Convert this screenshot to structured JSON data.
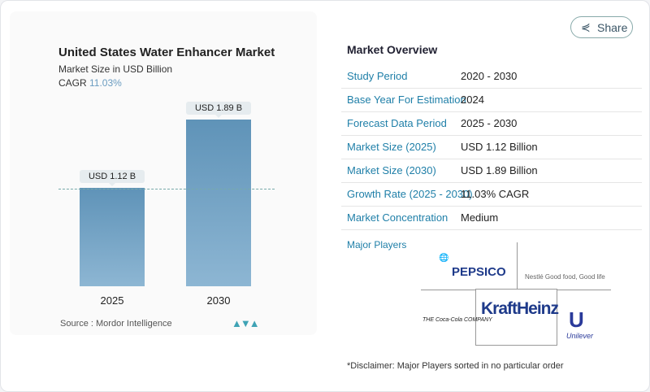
{
  "share_label": "Share",
  "chart_data": {
    "type": "bar",
    "title": "United States Water Enhancer Market",
    "subtitle": "Market Size in USD Billion",
    "cagr_label": "CAGR",
    "cagr_value": "11.03%",
    "categories": [
      "2025",
      "2030"
    ],
    "values": [
      1.12,
      1.89
    ],
    "data_labels": [
      "USD 1.12 B",
      "USD 1.89 B"
    ],
    "ylim": [
      0,
      2.0
    ],
    "source": "Source :  Mordor Intelligence",
    "colors": {
      "bar": "#6a9cc0",
      "cagr": "#6a9cc0"
    }
  },
  "overview": {
    "title": "Market Overview",
    "rows": [
      {
        "k": "Study Period",
        "v": "2020 - 2030"
      },
      {
        "k": "Base Year For Estimation",
        "v": "2024"
      },
      {
        "k": "Forecast Data Period",
        "v": "2025 - 2030"
      },
      {
        "k": "Market Size (2025)",
        "v": "USD 1.12 Billion"
      },
      {
        "k": "Market Size (2030)",
        "v": "USD 1.89 Billion"
      },
      {
        "k": "Growth Rate (2025 - 2030)",
        "v": "11.03% CAGR"
      },
      {
        "k": "Market Concentration",
        "v": "Medium"
      }
    ]
  },
  "players": {
    "title": "Major Players",
    "logos": [
      "PEPSICO",
      "Nestlé Good food, Good life",
      "THE Coca-Cola COMPANY",
      "KraftHeinz",
      "Unilever"
    ]
  },
  "disclaimer": "*Disclaimer: Major Players sorted in no particular order"
}
